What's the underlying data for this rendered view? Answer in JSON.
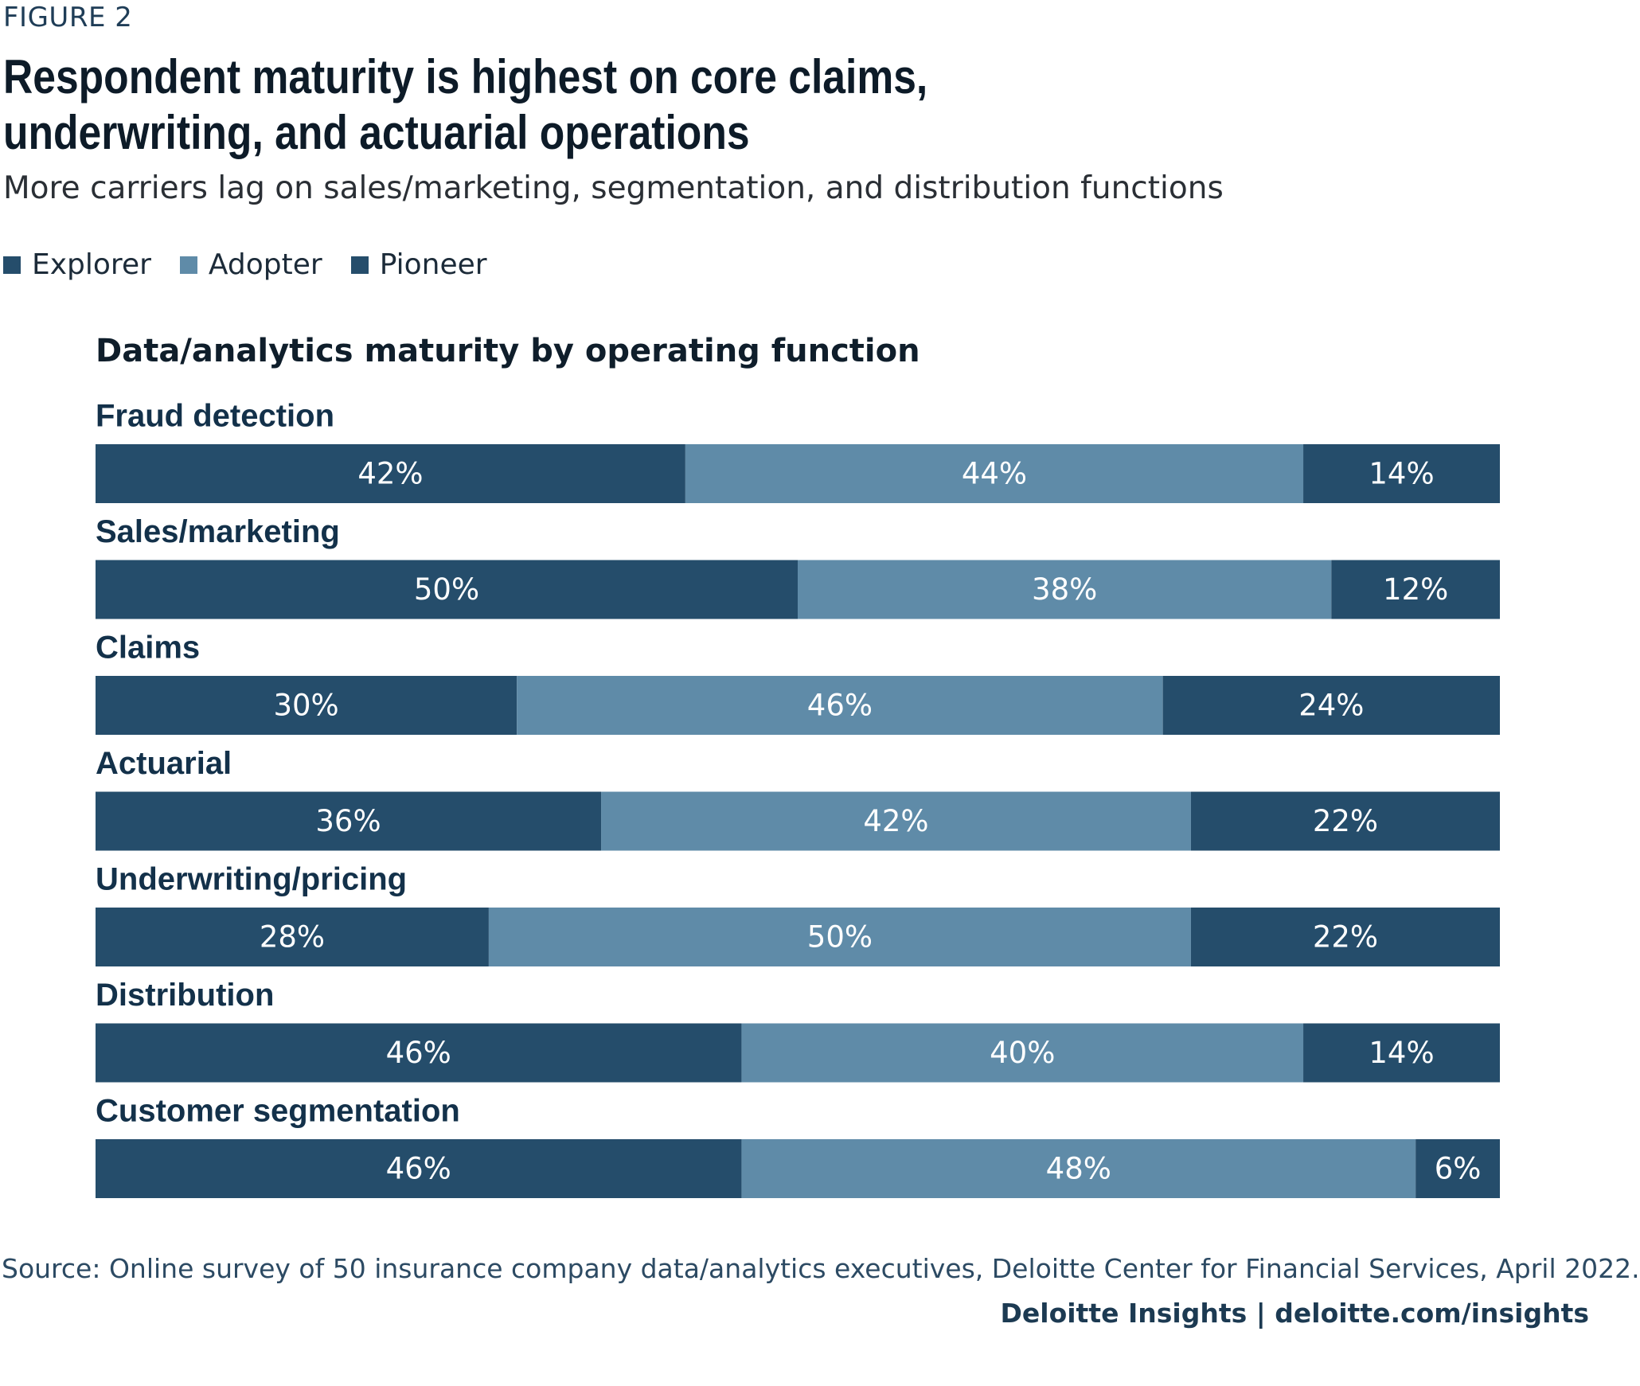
{
  "header": {
    "figure_label": "FIGURE 2",
    "title": "Respondent maturity is highest on core claims, underwriting, and actuarial operations",
    "subtitle": "More carriers lag on sales/marketing, segmentation, and distribution functions"
  },
  "colors": {
    "explorer": "#254d6b",
    "adopter": "#5f8ba8",
    "pioneer": "#254d6b",
    "label_text": "#ffffff",
    "category_text": "#13314a"
  },
  "chart_data": {
    "type": "bar",
    "orientation": "horizontal",
    "stacked": true,
    "title": "Data/analytics maturity by operating function",
    "categories": [
      "Fraud detection",
      "Sales/marketing",
      "Claims",
      "Actuarial",
      "Underwriting/pricing",
      "Distribution",
      "Customer segmentation"
    ],
    "series": [
      {
        "name": "Explorer",
        "values": [
          42,
          50,
          30,
          36,
          28,
          46,
          46
        ]
      },
      {
        "name": "Adopter",
        "values": [
          44,
          38,
          46,
          42,
          50,
          40,
          48
        ]
      },
      {
        "name": "Pioneer",
        "values": [
          14,
          12,
          24,
          22,
          22,
          14,
          6
        ]
      }
    ],
    "value_suffix": "%",
    "xlim": [
      0,
      100
    ],
    "legend": "top-left",
    "grid": false
  },
  "footer": {
    "source": "Source: Online survey of 50 insurance company data/analytics executives, Deloitte Center for Financial Services, April 2022.",
    "brand": "Deloitte Insights | deloitte.com/insights"
  }
}
